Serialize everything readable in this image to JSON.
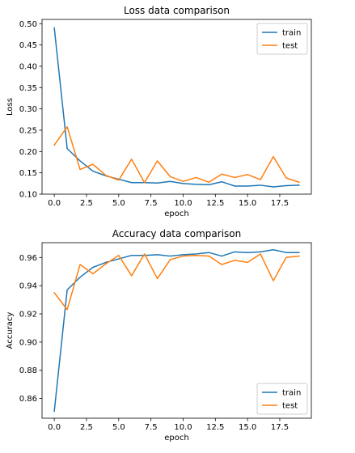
{
  "chart_data": [
    {
      "type": "line",
      "title": "Loss data comparison",
      "xlabel": "epoch",
      "ylabel": "Loss",
      "xlim": [
        -0.95,
        19.95
      ],
      "ylim": [
        0.1,
        0.51
      ],
      "x_ticks": [
        0,
        2.5,
        5,
        7.5,
        10,
        12.5,
        15,
        17.5
      ],
      "x_tick_labels": [
        "0.0",
        "2.5",
        "5.0",
        "7.5",
        "10.0",
        "12.5",
        "15.0",
        "17.5"
      ],
      "y_ticks": [
        0.1,
        0.15,
        0.2,
        0.25,
        0.3,
        0.35,
        0.4,
        0.45,
        0.5
      ],
      "y_tick_labels": [
        "0.10",
        "0.15",
        "0.20",
        "0.25",
        "0.30",
        "0.35",
        "0.40",
        "0.45",
        "0.50"
      ],
      "grid": false,
      "legend_position": "top-right",
      "x": [
        0,
        1,
        2,
        3,
        4,
        5,
        6,
        7,
        8,
        9,
        10,
        11,
        12,
        13,
        14,
        15,
        16,
        17,
        18,
        19
      ],
      "series": [
        {
          "name": "train",
          "color": "#1f77b4",
          "values": [
            0.49,
            0.207,
            0.178,
            0.154,
            0.143,
            0.135,
            0.127,
            0.127,
            0.126,
            0.13,
            0.125,
            0.123,
            0.122,
            0.129,
            0.119,
            0.119,
            0.121,
            0.117,
            0.12,
            0.121
          ]
        },
        {
          "name": "test",
          "color": "#ff7f0e",
          "values": [
            0.215,
            0.258,
            0.158,
            0.17,
            0.144,
            0.133,
            0.182,
            0.127,
            0.178,
            0.141,
            0.13,
            0.139,
            0.128,
            0.147,
            0.139,
            0.146,
            0.134,
            0.188,
            0.138,
            0.128
          ]
        }
      ]
    },
    {
      "type": "line",
      "title": "Accuracy data comparison",
      "xlabel": "epoch",
      "ylabel": "Accuracy",
      "xlim": [
        -0.95,
        19.95
      ],
      "ylim": [
        0.846,
        0.9705
      ],
      "x_ticks": [
        0,
        2.5,
        5,
        7.5,
        10,
        12.5,
        15,
        17.5
      ],
      "x_tick_labels": [
        "0.0",
        "2.5",
        "5.0",
        "7.5",
        "10.0",
        "12.5",
        "15.0",
        "17.5"
      ],
      "y_ticks": [
        0.86,
        0.88,
        0.9,
        0.92,
        0.94,
        0.96
      ],
      "y_tick_labels": [
        "0.86",
        "0.88",
        "0.90",
        "0.92",
        "0.94",
        "0.96"
      ],
      "grid": false,
      "legend_position": "bottom-right",
      "x": [
        0,
        1,
        2,
        3,
        4,
        5,
        6,
        7,
        8,
        9,
        10,
        11,
        12,
        13,
        14,
        15,
        16,
        17,
        18,
        19
      ],
      "series": [
        {
          "name": "train",
          "color": "#1f77b4",
          "values": [
            0.851,
            0.937,
            0.946,
            0.953,
            0.9565,
            0.959,
            0.9615,
            0.9615,
            0.962,
            0.961,
            0.962,
            0.9625,
            0.9635,
            0.961,
            0.964,
            0.9635,
            0.964,
            0.9655,
            0.9635,
            0.9635
          ]
        },
        {
          "name": "test",
          "color": "#ff7f0e",
          "values": [
            0.935,
            0.923,
            0.955,
            0.9485,
            0.9555,
            0.9615,
            0.947,
            0.9625,
            0.945,
            0.9585,
            0.961,
            0.9615,
            0.961,
            0.955,
            0.958,
            0.9565,
            0.9625,
            0.9435,
            0.96,
            0.961
          ]
        }
      ]
    }
  ]
}
